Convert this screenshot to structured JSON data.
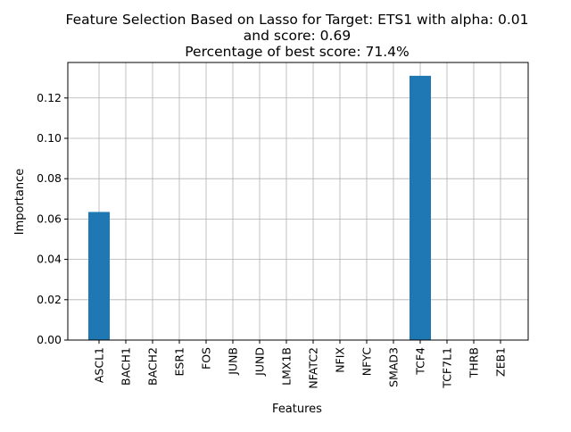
{
  "chart_data": {
    "type": "bar",
    "title_lines": [
      "Feature Selection Based on Lasso for Target: ETS1 with alpha: 0.01",
      "and score: 0.69",
      "Percentage of best score: 71.4%"
    ],
    "xlabel": "Features",
    "ylabel": "Importance",
    "categories": [
      "ASCL1",
      "BACH1",
      "BACH2",
      "ESR1",
      "FOS",
      "JUNB",
      "JUND",
      "LMX1B",
      "NFATC2",
      "NFIX",
      "NFYC",
      "SMAD3",
      "TCF4",
      "TCF7L1",
      "THRB",
      "ZEB1"
    ],
    "values": [
      0.0635,
      0,
      0,
      0,
      0,
      0,
      0,
      0,
      0,
      0,
      0,
      0,
      0.131,
      0,
      0,
      0
    ],
    "ylim": [
      0,
      0.1376
    ],
    "yticks": [
      0.0,
      0.02,
      0.04,
      0.06,
      0.08,
      0.1,
      0.12
    ],
    "ytick_labels": [
      "0.00",
      "0.02",
      "0.04",
      "0.06",
      "0.08",
      "0.10",
      "0.12"
    ],
    "grid": true,
    "bar_color": "#1f77b4",
    "grid_color": "#b0b0b0"
  }
}
